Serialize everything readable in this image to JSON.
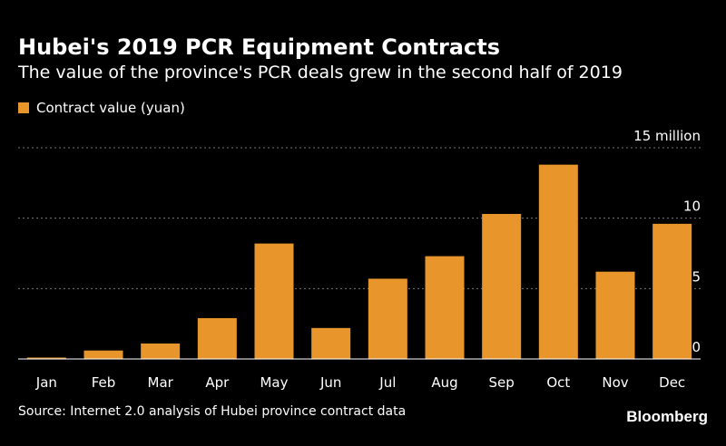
{
  "title": "Hubei's 2019 PCR Equipment Contracts",
  "subtitle": "The value of the province's PCR deals grew in the second half of 2019",
  "source": "Source: Internet 2.0 analysis of Hubei province contract data",
  "brand": "Bloomberg",
  "colors": {
    "bar": "#E8952B",
    "grid": "#777777",
    "background": "#000000",
    "text": "#ffffff"
  },
  "chart_data": {
    "type": "bar",
    "categories": [
      "Jan",
      "Feb",
      "Mar",
      "Apr",
      "May",
      "Jun",
      "Jul",
      "Aug",
      "Sep",
      "Oct",
      "Nov",
      "Dec"
    ],
    "series": [
      {
        "name": "Contract value (yuan)",
        "values": [
          0.1,
          0.6,
          1.1,
          2.9,
          8.2,
          2.2,
          5.7,
          7.3,
          10.3,
          13.8,
          6.2,
          9.6
        ]
      }
    ],
    "yticks": [
      {
        "value": 0,
        "label": "0"
      },
      {
        "value": 5,
        "label": "5"
      },
      {
        "value": 10,
        "label": "10"
      },
      {
        "value": 15,
        "label": "15 million"
      }
    ],
    "ylim": [
      0,
      15
    ],
    "grid": true,
    "legend": "top-left",
    "yaxis_side": "right"
  }
}
